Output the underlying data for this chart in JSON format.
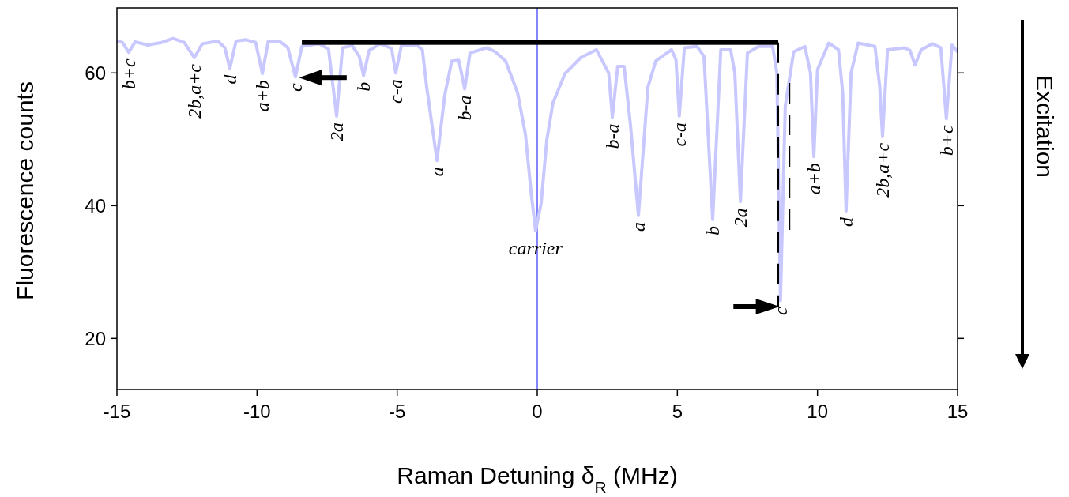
{
  "chart_data": {
    "type": "line",
    "xlabel": "Raman Detuning δ$_{R}$ (MHz)",
    "ylabel": "Fluorescence counts",
    "xlim": [
      -15,
      15
    ],
    "ylim": [
      12.3,
      69.8
    ],
    "xticks": [
      -15,
      -10,
      -5,
      0,
      5,
      10,
      15
    ],
    "yticks": [
      20,
      40,
      60
    ],
    "grid": false,
    "marker": "none",
    "line_style": "solid",
    "series": [
      {
        "color": "#c8c8ff",
        "x": [
          -15,
          -14.8,
          -14.58,
          -14.35,
          -13.9,
          -13.4,
          -13.0,
          -12.6,
          -12.24,
          -11.95,
          -11.4,
          -11.15,
          -10.97,
          -10.75,
          -10.4,
          -10.05,
          -9.81,
          -9.6,
          -9.2,
          -8.9,
          -8.63,
          -8.4,
          -7.8,
          -7.45,
          -7.16,
          -6.95,
          -6.6,
          -6.35,
          -6.2,
          -6.0,
          -5.6,
          -5.2,
          -5.05,
          -4.85,
          -4.3,
          -4.1,
          -3.95,
          -3.58,
          -3.3,
          -3.05,
          -2.8,
          -2.59,
          -2.4,
          -1.8,
          -1.5,
          -1.13,
          -0.7,
          -0.42,
          -0.22,
          -0.06,
          0.14,
          0.34,
          0.56,
          0.99,
          1.55,
          2.11,
          2.55,
          2.68,
          2.87,
          3.1,
          3.33,
          3.61,
          3.95,
          4.23,
          4.79,
          4.95,
          5.07,
          5.25,
          5.7,
          5.95,
          6.26,
          6.55,
          6.9,
          7.05,
          7.25,
          7.5,
          7.9,
          8.4,
          8.55,
          8.68,
          8.85,
          9.15,
          9.55,
          9.75,
          9.87,
          10.0,
          10.4,
          10.75,
          10.9,
          11.02,
          11.2,
          11.45,
          12.05,
          12.22,
          12.32,
          12.5,
          13.1,
          13.3,
          13.48,
          13.7,
          14.1,
          14.4,
          14.6,
          14.8,
          15.0
        ],
        "values": [
          64.8,
          64.6,
          63.1,
          64.7,
          64.2,
          64.6,
          65.2,
          64.6,
          62.3,
          64.4,
          64.8,
          63.8,
          60.7,
          64.8,
          65.0,
          64.6,
          59.9,
          64.8,
          64.8,
          63.8,
          59.4,
          64.0,
          64.4,
          63.6,
          53.5,
          63.8,
          64.1,
          62.5,
          59.6,
          63.4,
          64.4,
          63.7,
          60.0,
          64.1,
          64.2,
          63.5,
          58.0,
          46.8,
          56.7,
          61.8,
          61.9,
          57.6,
          63.0,
          63.8,
          63.2,
          61.8,
          57.0,
          50.7,
          42.0,
          36.2,
          40.4,
          49.9,
          55.5,
          59.9,
          62.3,
          63.5,
          60.0,
          53.3,
          61.0,
          61.0,
          52.0,
          38.5,
          57.9,
          61.8,
          63.5,
          62.0,
          53.5,
          63.8,
          64.0,
          62.5,
          37.9,
          63.5,
          63.5,
          60.0,
          40.6,
          63.0,
          64.0,
          64.0,
          60.0,
          25.7,
          55.0,
          63.2,
          64.0,
          60.0,
          47.4,
          60.5,
          64.5,
          63.5,
          57.0,
          39.2,
          60.0,
          64.5,
          64.0,
          58.0,
          50.4,
          63.5,
          63.8,
          63.4,
          61.2,
          63.5,
          64.4,
          63.8,
          53.1,
          64.2,
          63.2
        ]
      }
    ],
    "ref_lines": [
      {
        "axis": "x",
        "value": 0,
        "color": "#3333ff"
      }
    ],
    "annotations": [
      {
        "text": "b+c",
        "x": -14.58,
        "y": 63.1
      },
      {
        "text": "2b,a+c",
        "x": -12.24,
        "y": 62.3
      },
      {
        "text": "d",
        "x": -10.97,
        "y": 60.7
      },
      {
        "text": "a+b",
        "x": -9.81,
        "y": 59.9
      },
      {
        "text": "c",
        "x": -8.63,
        "y": 59.4
      },
      {
        "text": "2a",
        "x": -7.16,
        "y": 53.5
      },
      {
        "text": "b",
        "x": -6.2,
        "y": 59.6
      },
      {
        "text": "c-a",
        "x": -5.05,
        "y": 60.0
      },
      {
        "text": "a",
        "x": -3.58,
        "y": 46.8
      },
      {
        "text": "b-a",
        "x": -2.59,
        "y": 57.6
      },
      {
        "text": "carrier",
        "x": -0.06,
        "y": 36.2
      },
      {
        "text": "b-a",
        "x": 2.68,
        "y": 53.3
      },
      {
        "text": "a",
        "x": 3.61,
        "y": 38.5
      },
      {
        "text": "c-a",
        "x": 5.07,
        "y": 53.5
      },
      {
        "text": "b",
        "x": 6.26,
        "y": 37.9
      },
      {
        "text": "2a",
        "x": 7.25,
        "y": 40.6
      },
      {
        "text": "c",
        "x": 8.68,
        "y": 25.7
      },
      {
        "text": "a+b",
        "x": 9.87,
        "y": 47.4
      },
      {
        "text": "d",
        "x": 11.02,
        "y": 39.2
      },
      {
        "text": "2b,a+c",
        "x": 12.32,
        "y": 50.4
      },
      {
        "text": "b+c",
        "x": 14.6,
        "y": 53.1
      },
      "Excitation"
    ]
  }
}
